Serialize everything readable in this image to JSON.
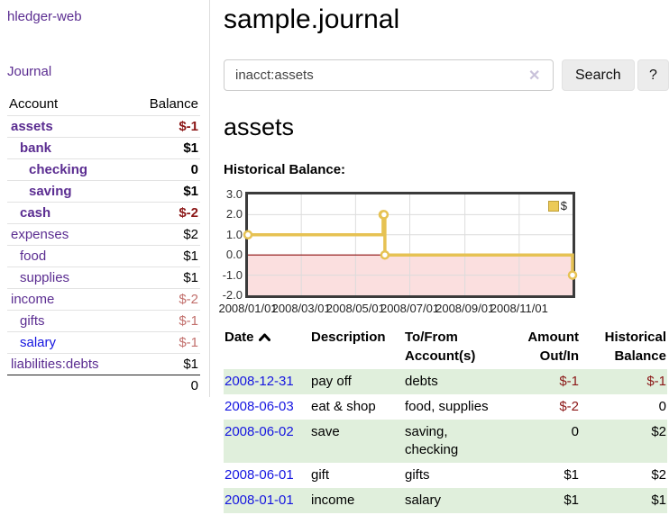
{
  "sidebar": {
    "app_title": "hledger-web",
    "journal_label": "Journal",
    "accounts_table": {
      "headers": {
        "account": "Account",
        "balance": "Balance"
      },
      "rows": [
        {
          "name": "assets",
          "balance": "$-1",
          "indent": 0,
          "bold": true,
          "balance_style": "neg-strong",
          "link_style": "purple"
        },
        {
          "name": "bank",
          "balance": "$1",
          "indent": 1,
          "bold": true,
          "balance_style": "normal",
          "link_style": "purple"
        },
        {
          "name": "checking",
          "balance": "0",
          "indent": 2,
          "bold": true,
          "balance_style": "normal",
          "link_style": "purple"
        },
        {
          "name": "saving",
          "balance": "$1",
          "indent": 2,
          "bold": true,
          "balance_style": "normal",
          "link_style": "purple"
        },
        {
          "name": "cash",
          "balance": "$-2",
          "indent": 1,
          "bold": true,
          "balance_style": "neg-strong",
          "link_style": "purple"
        },
        {
          "name": "expenses",
          "balance": "$2",
          "indent": 0,
          "bold": false,
          "balance_style": "normal",
          "link_style": "purple"
        },
        {
          "name": "food",
          "balance": "$1",
          "indent": 1,
          "bold": false,
          "balance_style": "normal",
          "link_style": "purple"
        },
        {
          "name": "supplies",
          "balance": "$1",
          "indent": 1,
          "bold": false,
          "balance_style": "normal",
          "link_style": "purple"
        },
        {
          "name": "income",
          "balance": "$-2",
          "indent": 0,
          "bold": false,
          "balance_style": "neg-light",
          "link_style": "purple"
        },
        {
          "name": "gifts",
          "balance": "$-1",
          "indent": 1,
          "bold": false,
          "balance_style": "neg-light",
          "link_style": "purple"
        },
        {
          "name": "salary",
          "balance": "$-1",
          "indent": 1,
          "bold": false,
          "balance_style": "neg-light",
          "link_style": "blue"
        },
        {
          "name": "liabilities:debts",
          "balance": "$1",
          "indent": 0,
          "bold": false,
          "balance_style": "normal",
          "link_style": "purple"
        }
      ],
      "total": "0"
    }
  },
  "header": {
    "title": "sample.journal"
  },
  "search": {
    "value": "inacct:assets",
    "clear_icon": "✕",
    "button_label": "Search",
    "help_label": "?"
  },
  "main": {
    "account_heading": "assets",
    "chart_label": "Historical Balance:"
  },
  "chart_data": {
    "type": "line",
    "step": true,
    "title": "Historical Balance",
    "series": [
      {
        "name": "$",
        "points": [
          {
            "date": "2008/01/01",
            "value": 1
          },
          {
            "date": "2008/06/01",
            "value": 2
          },
          {
            "date": "2008/06/02",
            "value": 2
          },
          {
            "date": "2008/06/03",
            "value": 0
          },
          {
            "date": "2008/12/31",
            "value": -1
          }
        ]
      }
    ],
    "x_range": [
      "2008/01/01",
      "2008/12/31"
    ],
    "x_ticks": [
      "2008/01/01",
      "2008/03/01",
      "2008/05/01",
      "2008/07/01",
      "2008/09/01",
      "2008/11/01"
    ],
    "y_ticks": [
      3.0,
      2.0,
      1.0,
      0.0,
      -1.0,
      -2.0
    ],
    "ylim": [
      -2,
      3
    ],
    "grid": true,
    "legend": {
      "label": "$",
      "position": "top-right"
    },
    "colors": {
      "line": "#e6c253",
      "marker_fill": "#ffffff",
      "negative_region": "#fbdfdf",
      "zero_line": "#8c0f0f",
      "gridline": "#dcdcdc",
      "plot_border": "#3b3b3b"
    }
  },
  "transactions_table": {
    "headers": {
      "date": "Date",
      "description": "Description",
      "accounts": "To/From Account(s)",
      "amount": "Amount Out/In",
      "balance": "Historical Balance"
    },
    "sort": {
      "column": "date",
      "direction": "ascending"
    },
    "rows": [
      {
        "date": "2008-12-31",
        "description": "pay off",
        "accounts": "debts",
        "amount": "$-1",
        "balance": "$-1",
        "amount_style": "neg-strong",
        "balance_style": "neg-strong",
        "stripe": true
      },
      {
        "date": "2008-06-03",
        "description": "eat & shop",
        "accounts": "food, supplies",
        "amount": "$-2",
        "balance": "0",
        "amount_style": "neg-strong",
        "balance_style": "normal",
        "stripe": false
      },
      {
        "date": "2008-06-02",
        "description": "save",
        "accounts": "saving, checking",
        "amount": "0",
        "balance": "$2",
        "amount_style": "normal",
        "balance_style": "normal",
        "stripe": true
      },
      {
        "date": "2008-06-01",
        "description": "gift",
        "accounts": "gifts",
        "amount": "$1",
        "balance": "$2",
        "amount_style": "normal",
        "balance_style": "normal",
        "stripe": false
      },
      {
        "date": "2008-01-01",
        "description": "income",
        "accounts": "salary",
        "amount": "$1",
        "balance": "$1",
        "amount_style": "normal",
        "balance_style": "normal",
        "stripe": true
      }
    ]
  }
}
